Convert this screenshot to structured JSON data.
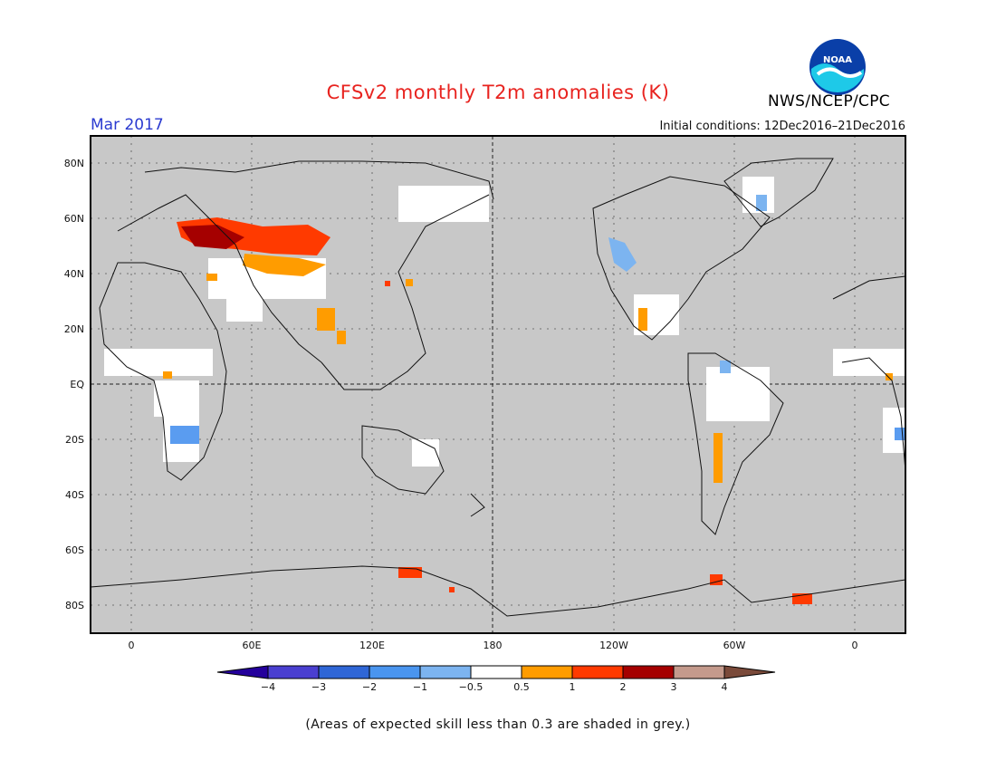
{
  "header": {
    "title": "CFSv2 monthly T2m anomalies (K)",
    "valid_month": "Mar 2017",
    "initial_conditions": "Initial conditions: 12Dec2016–21Dec2016",
    "organization": "NWS/NCEP/CPC",
    "logo_text": "NOAA"
  },
  "map": {
    "projection": "cylindrical equidistant",
    "lat_labels": [
      "80N",
      "60N",
      "40N",
      "20N",
      "EQ",
      "20S",
      "40S",
      "60S",
      "80S"
    ],
    "lon_labels": [
      "0",
      "60E",
      "120E",
      "180",
      "120W",
      "60W",
      "0"
    ],
    "mask_color": "#c8c8c8",
    "highlights": [
      {
        "region": "western Russia",
        "category": "3 to 4",
        "color": "#a50000"
      },
      {
        "region": "Siberia / Kazakhstan",
        "category": "2 to 3",
        "color": "#ff3a00"
      },
      {
        "region": "Central Asia",
        "category": "1 to 2",
        "color": "#ff9800"
      },
      {
        "region": "western North America",
        "category": "-1 to -0.5",
        "color": "#7cb4f0"
      },
      {
        "region": "southern Africa",
        "category": "-1 to -0.5",
        "color": "#5a9cf0"
      },
      {
        "region": "Antarctic Peninsula",
        "category": "2 to 3",
        "color": "#ff3a00"
      }
    ]
  },
  "colorbar": {
    "tick_labels": [
      "−4",
      "−3",
      "−2",
      "−1",
      "−0.5",
      "0.5",
      "1",
      "2",
      "3",
      "4"
    ],
    "colors": [
      "#24009c",
      "#4a3fd0",
      "#2f66d6",
      "#4a95ef",
      "#7cb4f0",
      "#ffffff",
      "#ff9c00",
      "#ff3a00",
      "#a50000",
      "#c49a8c",
      "#7a4a3a"
    ]
  },
  "footer": {
    "note": "(Areas of expected skill less than 0.3 are shaded in grey.)"
  }
}
